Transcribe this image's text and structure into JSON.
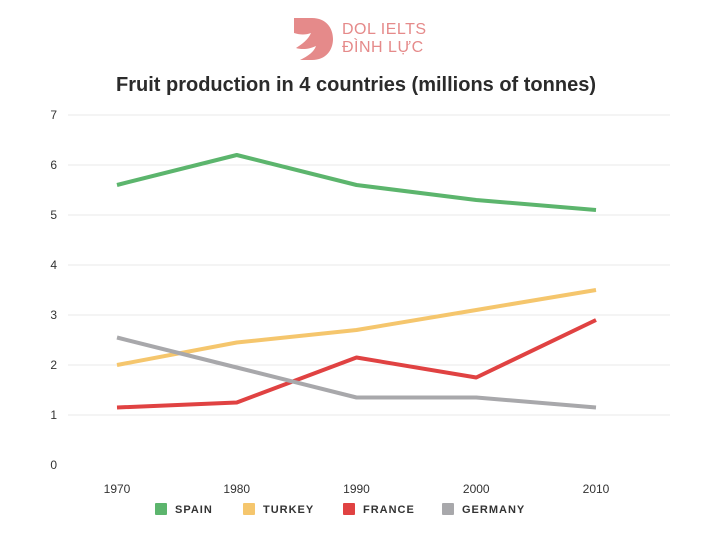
{
  "logo": {
    "line1": "DOL IELTS",
    "line2": "ĐÌNH LỰC"
  },
  "colors": {
    "spain": "#5cb56d",
    "turkey": "#f5c66d",
    "france": "#e04242",
    "germany": "#a8a8ab",
    "grid": "#e8e8e8",
    "logo": "#e58a8a"
  },
  "chart_data": {
    "type": "line",
    "title": "Fruit production in 4 countries (millions of tonnes)",
    "xlabel": "",
    "ylabel": "",
    "x": [
      1970,
      1980,
      1990,
      2000,
      2010
    ],
    "ylim": [
      0,
      7
    ],
    "yticks": [
      0,
      1,
      2,
      3,
      4,
      5,
      6,
      7
    ],
    "grid": true,
    "legend": "bottom",
    "series": [
      {
        "name": "SPAIN",
        "key": "spain",
        "values": [
          5.6,
          6.2,
          5.6,
          5.3,
          5.1
        ]
      },
      {
        "name": "TURKEY",
        "key": "turkey",
        "values": [
          2.0,
          2.45,
          2.7,
          3.1,
          3.5
        ]
      },
      {
        "name": "FRANCE",
        "key": "france",
        "values": [
          1.15,
          1.25,
          2.15,
          1.75,
          2.9
        ]
      },
      {
        "name": "GERMANY",
        "key": "germany",
        "values": [
          2.55,
          1.95,
          1.35,
          1.35,
          1.15
        ]
      }
    ]
  }
}
